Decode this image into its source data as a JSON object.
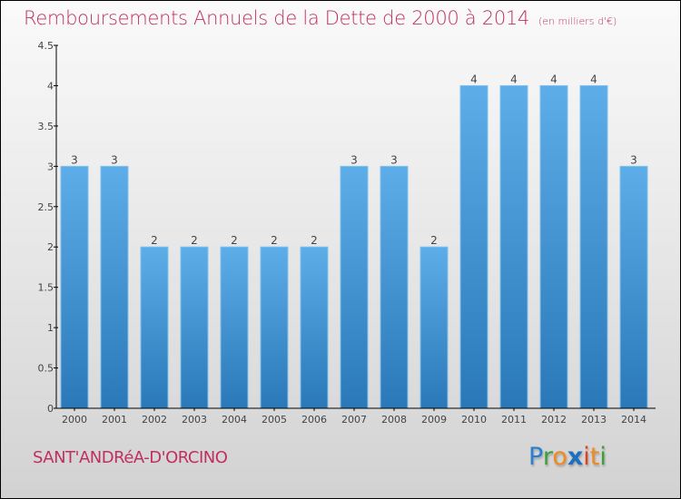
{
  "header": {
    "title": "Remboursements Annuels de la Dette de 2000 à 2014",
    "unit": "(en milliers d'€)"
  },
  "footer": {
    "city": "SANT'ANDRéA-D'ORCINO",
    "logo": {
      "letters": [
        {
          "ch": "P",
          "color": "#2a7fd0"
        },
        {
          "ch": "r",
          "color": "#3aa03a"
        },
        {
          "ch": "o",
          "color": "#f08a20"
        },
        {
          "ch": "x",
          "color": "#1f6fc0"
        },
        {
          "ch": "i",
          "color": "#e04020"
        },
        {
          "ch": "t",
          "color": "#f08a20"
        },
        {
          "ch": "i",
          "color": "#3aa03a"
        }
      ]
    }
  },
  "colors": {
    "title": "#c0305e",
    "bar_top": "#5dade8",
    "bar_bottom": "#2a78b8",
    "bar_edge": "#7cc0f0",
    "axis": "#000000"
  },
  "chart_data": {
    "type": "bar",
    "title": "Remboursements Annuels de la Dette de 2000 à 2014",
    "subtitle": "(en milliers d'€)",
    "xlabel": "",
    "ylabel": "",
    "categories": [
      "2000",
      "2001",
      "2002",
      "2003",
      "2004",
      "2005",
      "2006",
      "2007",
      "2008",
      "2009",
      "2010",
      "2011",
      "2012",
      "2013",
      "2014"
    ],
    "values": [
      3,
      3,
      2,
      2,
      2,
      2,
      2,
      3,
      3,
      2,
      4,
      4,
      4,
      4,
      3
    ],
    "data_labels": [
      "3",
      "3",
      "2",
      "2",
      "2",
      "2",
      "2",
      "3",
      "3",
      "2",
      "4",
      "4",
      "4",
      "4",
      "3"
    ],
    "ylim": [
      0,
      4.5
    ],
    "yticks": [
      0,
      0.5,
      1,
      1.5,
      2,
      2.5,
      3,
      3.5,
      4,
      4.5
    ],
    "ytick_labels": [
      "0",
      "0.5",
      "1",
      "1.5",
      "2",
      "2.5",
      "3",
      "3.5",
      "4",
      "4.5"
    ],
    "grid": false,
    "legend": "none"
  }
}
